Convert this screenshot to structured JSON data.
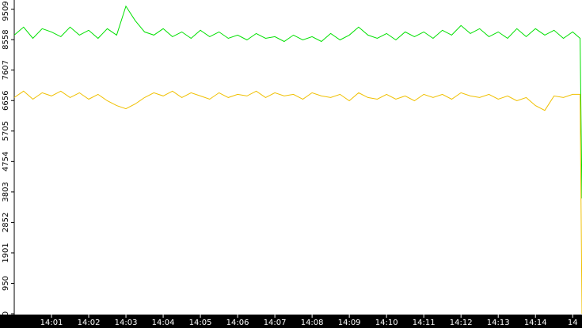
{
  "chart_data": {
    "type": "line",
    "x": [
      840,
      840.25,
      840.5,
      840.75,
      841,
      841.25,
      841.5,
      841.75,
      842,
      842.25,
      842.5,
      842.75,
      843,
      843.25,
      843.5,
      843.75,
      844,
      844.25,
      844.5,
      844.75,
      845,
      845.25,
      845.5,
      845.75,
      846,
      846.25,
      846.5,
      846.75,
      847,
      847.25,
      847.5,
      847.75,
      848,
      848.25,
      848.5,
      848.75,
      849,
      849.25,
      849.5,
      849.75,
      850,
      850.25,
      850.5,
      850.75,
      851,
      851.25,
      851.5,
      851.75,
      852,
      852.25,
      852.5,
      852.75,
      853,
      853.25,
      853.5,
      853.75,
      854,
      854.25,
      854.5,
      854.75,
      855,
      855.2,
      855.25
    ],
    "series": [
      {
        "color": "#00e000",
        "values": [
          8700,
          8950,
          8600,
          8900,
          8800,
          8650,
          8950,
          8700,
          8850,
          8600,
          8900,
          8700,
          9600,
          9150,
          8800,
          8700,
          8900,
          8650,
          8800,
          8600,
          8850,
          8650,
          8800,
          8600,
          8700,
          8550,
          8750,
          8600,
          8650,
          8500,
          8700,
          8550,
          8650,
          8500,
          8750,
          8550,
          8700,
          8950,
          8700,
          8600,
          8750,
          8550,
          8800,
          8650,
          8800,
          8600,
          8850,
          8700,
          9000,
          8750,
          8900,
          8650,
          8800,
          8600,
          8900,
          8650,
          8900,
          8700,
          8850,
          8600,
          8800,
          8600,
          3600
        ]
      },
      {
        "color": "#f0c000",
        "values": [
          6750,
          6950,
          6700,
          6900,
          6800,
          6950,
          6750,
          6900,
          6700,
          6850,
          6650,
          6500,
          6400,
          6550,
          6750,
          6900,
          6800,
          6950,
          6750,
          6900,
          6800,
          6700,
          6900,
          6750,
          6850,
          6800,
          6950,
          6750,
          6900,
          6800,
          6850,
          6700,
          6900,
          6800,
          6750,
          6850,
          6650,
          6900,
          6750,
          6700,
          6850,
          6700,
          6800,
          6650,
          6850,
          6750,
          6850,
          6700,
          6900,
          6800,
          6750,
          6850,
          6700,
          6800,
          6650,
          6750,
          6500,
          6350,
          6800,
          6750,
          6850,
          6850,
          0
        ]
      }
    ],
    "xlim": [
      840,
      855.25
    ],
    "xticks": [
      {
        "value": 841,
        "label": "14:01"
      },
      {
        "value": 842,
        "label": "14:02"
      },
      {
        "value": 843,
        "label": "14:03"
      },
      {
        "value": 844,
        "label": "14:04"
      },
      {
        "value": 845,
        "label": "14:05"
      },
      {
        "value": 846,
        "label": "14:06"
      },
      {
        "value": 847,
        "label": "14:07"
      },
      {
        "value": 848,
        "label": "14:08"
      },
      {
        "value": 849,
        "label": "14:09"
      },
      {
        "value": 850,
        "label": "14:10"
      },
      {
        "value": 851,
        "label": "14:11"
      },
      {
        "value": 852,
        "label": "14:12"
      },
      {
        "value": 853,
        "label": "14:13"
      },
      {
        "value": 854,
        "label": "14:14"
      },
      {
        "value": 855,
        "label": "14"
      }
    ],
    "ylim": [
      0,
      9796
    ],
    "yticks": [
      0,
      950,
      1901,
      2852,
      3803,
      4754,
      5705,
      6656,
      7607,
      8558,
      9509
    ]
  }
}
